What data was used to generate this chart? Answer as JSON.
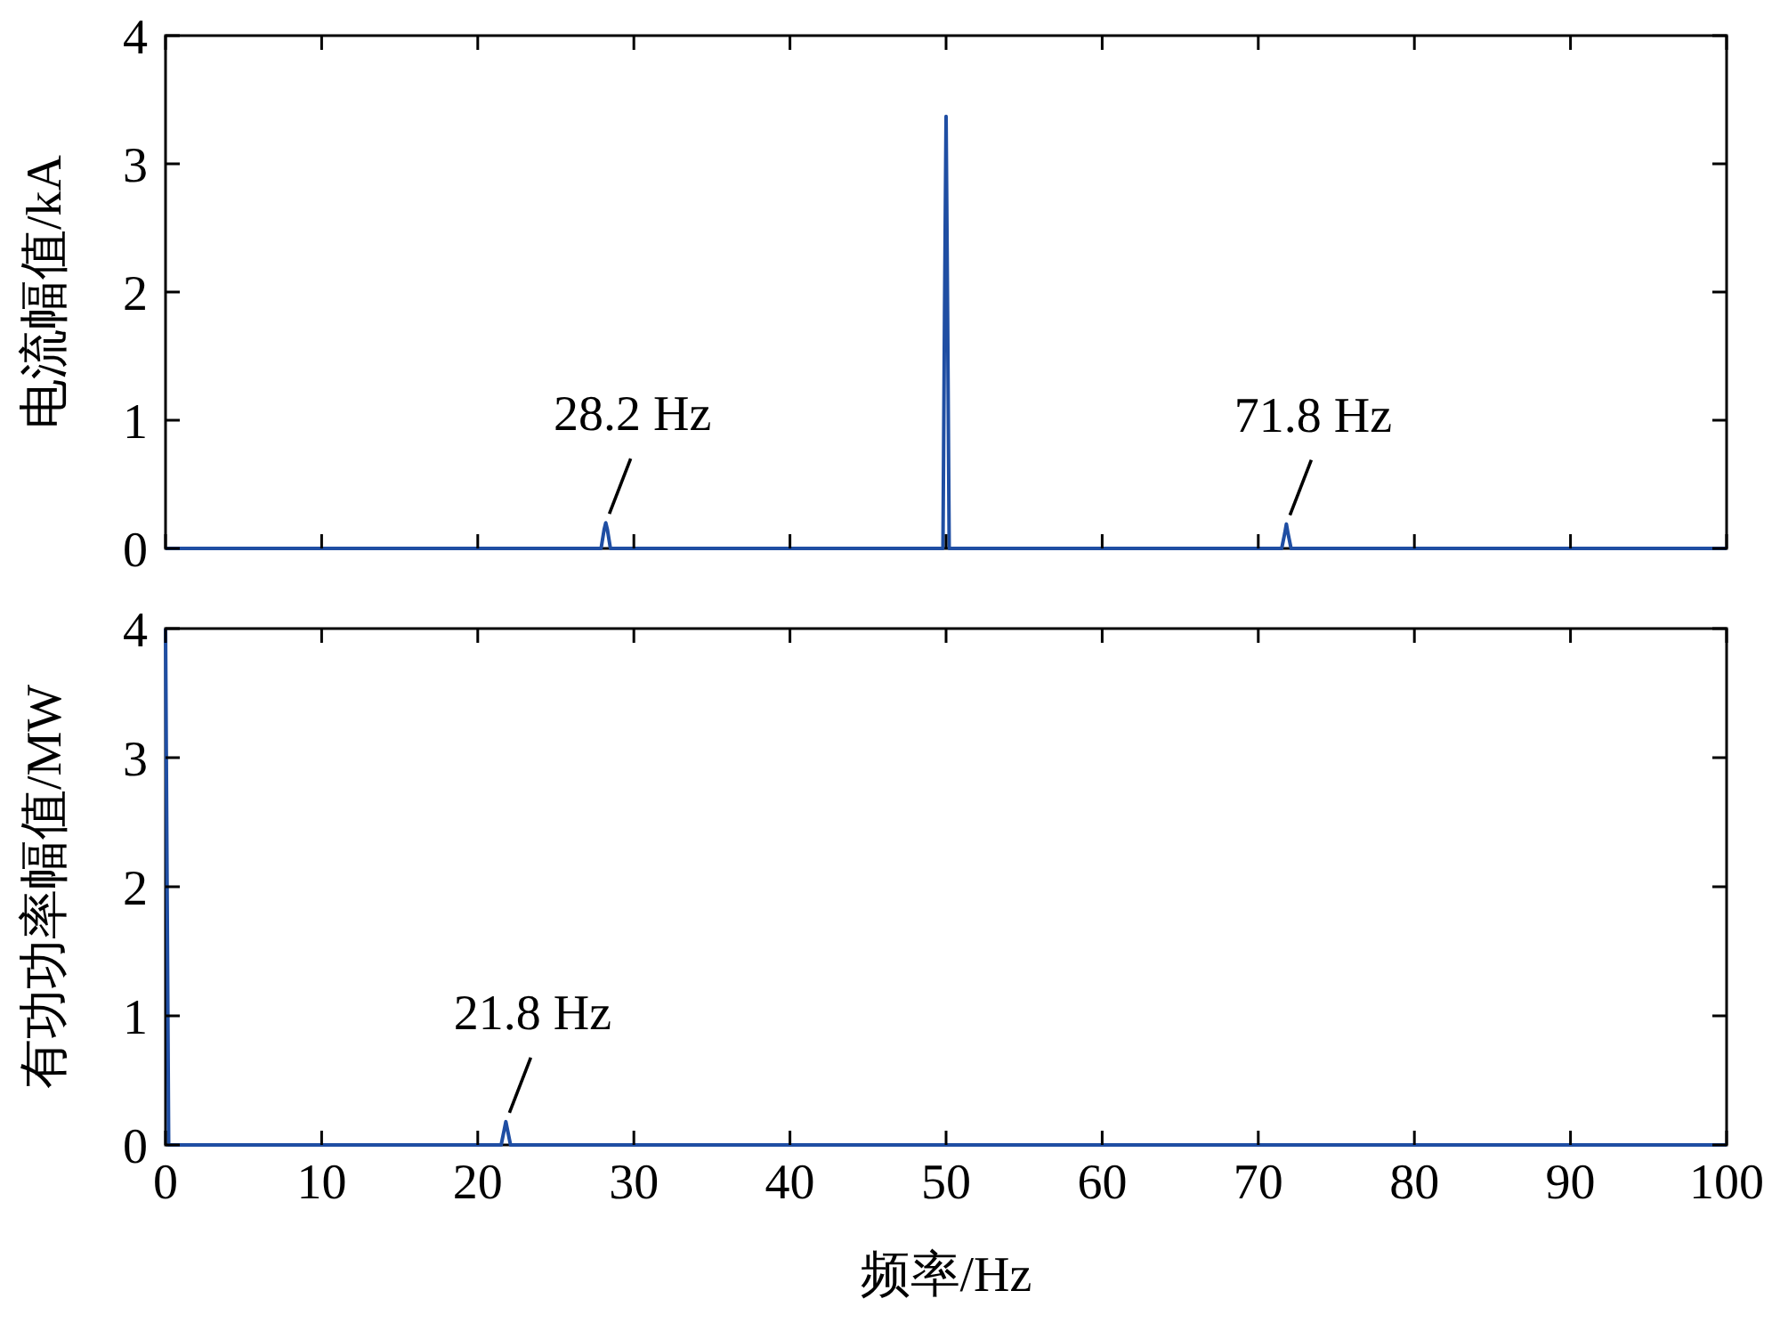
{
  "chart_data": [
    {
      "type": "line",
      "ylabel": "电流幅值/kA",
      "xlim": [
        0,
        100
      ],
      "xticks": [
        0,
        10,
        20,
        30,
        40,
        50,
        60,
        70,
        80,
        90,
        100
      ],
      "ylim": [
        0,
        4
      ],
      "yticks": [
        0,
        1,
        2,
        3,
        4
      ],
      "tick_labels": "y",
      "grid": false,
      "marker": "none",
      "line_style": "solid",
      "series": [
        {
          "color": "#1f4ea3",
          "x": [
            0,
            27.9,
            28.1,
            28.2,
            28.3,
            28.5,
            49.8,
            49.9,
            50,
            50.1,
            50.2,
            71.5,
            71.7,
            71.8,
            71.9,
            72.1,
            100
          ],
          "values": [
            0,
            0,
            0.15,
            0.2,
            0.15,
            0,
            0,
            1.8,
            3.37,
            1.8,
            0,
            0,
            0.12,
            0.19,
            0.12,
            0,
            0
          ]
        }
      ],
      "annotations": [
        {
          "text": "28.2 Hz",
          "x": 28.2,
          "y": 0.2
        },
        {
          "text": "71.8 Hz",
          "x": 71.8,
          "y": 0.19
        }
      ]
    },
    {
      "type": "line",
      "xlabel": "频率/Hz",
      "ylabel": "有功功率幅值/MW",
      "xlim": [
        0,
        100
      ],
      "xticks": [
        0,
        10,
        20,
        30,
        40,
        50,
        60,
        70,
        80,
        90,
        100
      ],
      "ylim": [
        0,
        4
      ],
      "yticks": [
        0,
        1,
        2,
        3,
        4
      ],
      "grid": false,
      "marker": "none",
      "line_style": "solid",
      "series": [
        {
          "color": "#1f4ea3",
          "x": [
            0,
            0.2,
            21.5,
            21.7,
            21.8,
            21.9,
            22.1,
            100
          ],
          "values": [
            4,
            0,
            0,
            0.12,
            0.18,
            0.12,
            0,
            0
          ]
        }
      ],
      "annotations": [
        {
          "text": "21.8 Hz",
          "x": 21.8,
          "y": 0.18
        }
      ]
    }
  ]
}
